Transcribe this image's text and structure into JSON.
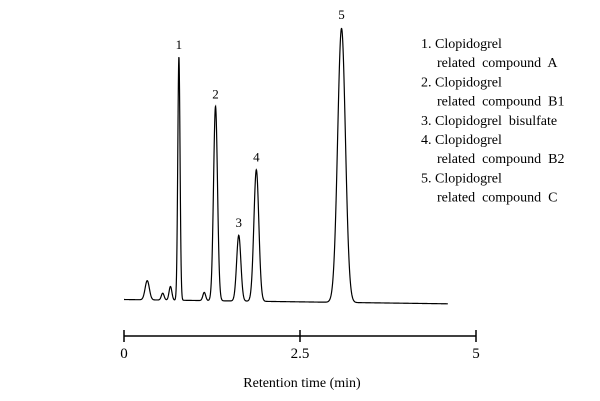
{
  "chart_data": {
    "type": "line",
    "title": "",
    "xlabel": "Retention time (min)",
    "ylabel": "",
    "xlim": [
      0,
      5
    ],
    "x_ticks": [
      0,
      2.5,
      5
    ],
    "x_tick_labels": [
      "0",
      "2.5",
      "5"
    ],
    "grid": false,
    "legend_position": "top-right",
    "baseline": 0.02,
    "series": [
      {
        "peaks": [
          {
            "t": 0.33,
            "height": 0.07,
            "width": 0.03
          },
          {
            "t": 0.55,
            "height": 0.025,
            "width": 0.02
          },
          {
            "t": 0.66,
            "height": 0.05,
            "width": 0.02
          },
          {
            "t": 0.78,
            "height": 0.89,
            "width": 0.016
          },
          {
            "t": 1.14,
            "height": 0.03,
            "width": 0.02
          },
          {
            "t": 1.3,
            "height": 0.71,
            "width": 0.028
          },
          {
            "t": 1.63,
            "height": 0.24,
            "width": 0.03
          },
          {
            "t": 1.88,
            "height": 0.48,
            "width": 0.035
          },
          {
            "t": 3.09,
            "height": 1.0,
            "width": 0.055
          }
        ]
      }
    ],
    "peak_labels": [
      {
        "label": "1",
        "t": 0.78,
        "height": 0.89
      },
      {
        "label": "2",
        "t": 1.3,
        "height": 0.71
      },
      {
        "label": "3",
        "t": 1.63,
        "height": 0.24
      },
      {
        "label": "4",
        "t": 1.88,
        "height": 0.48
      },
      {
        "label": "5",
        "t": 3.09,
        "height": 1.0
      }
    ],
    "legend": [
      {
        "line1": "1. Clopidogrel",
        "line2": "related  compound  A"
      },
      {
        "line1": "2. Clopidogrel",
        "line2": "related  compound  B1"
      },
      {
        "line1": "3. Clopidogrel  bisulfate",
        "line2": ""
      },
      {
        "line1": "4. Clopidogrel",
        "line2": "related  compound  B2"
      },
      {
        "line1": "5. Clopidogrel",
        "line2": "related  compound  C"
      }
    ]
  }
}
